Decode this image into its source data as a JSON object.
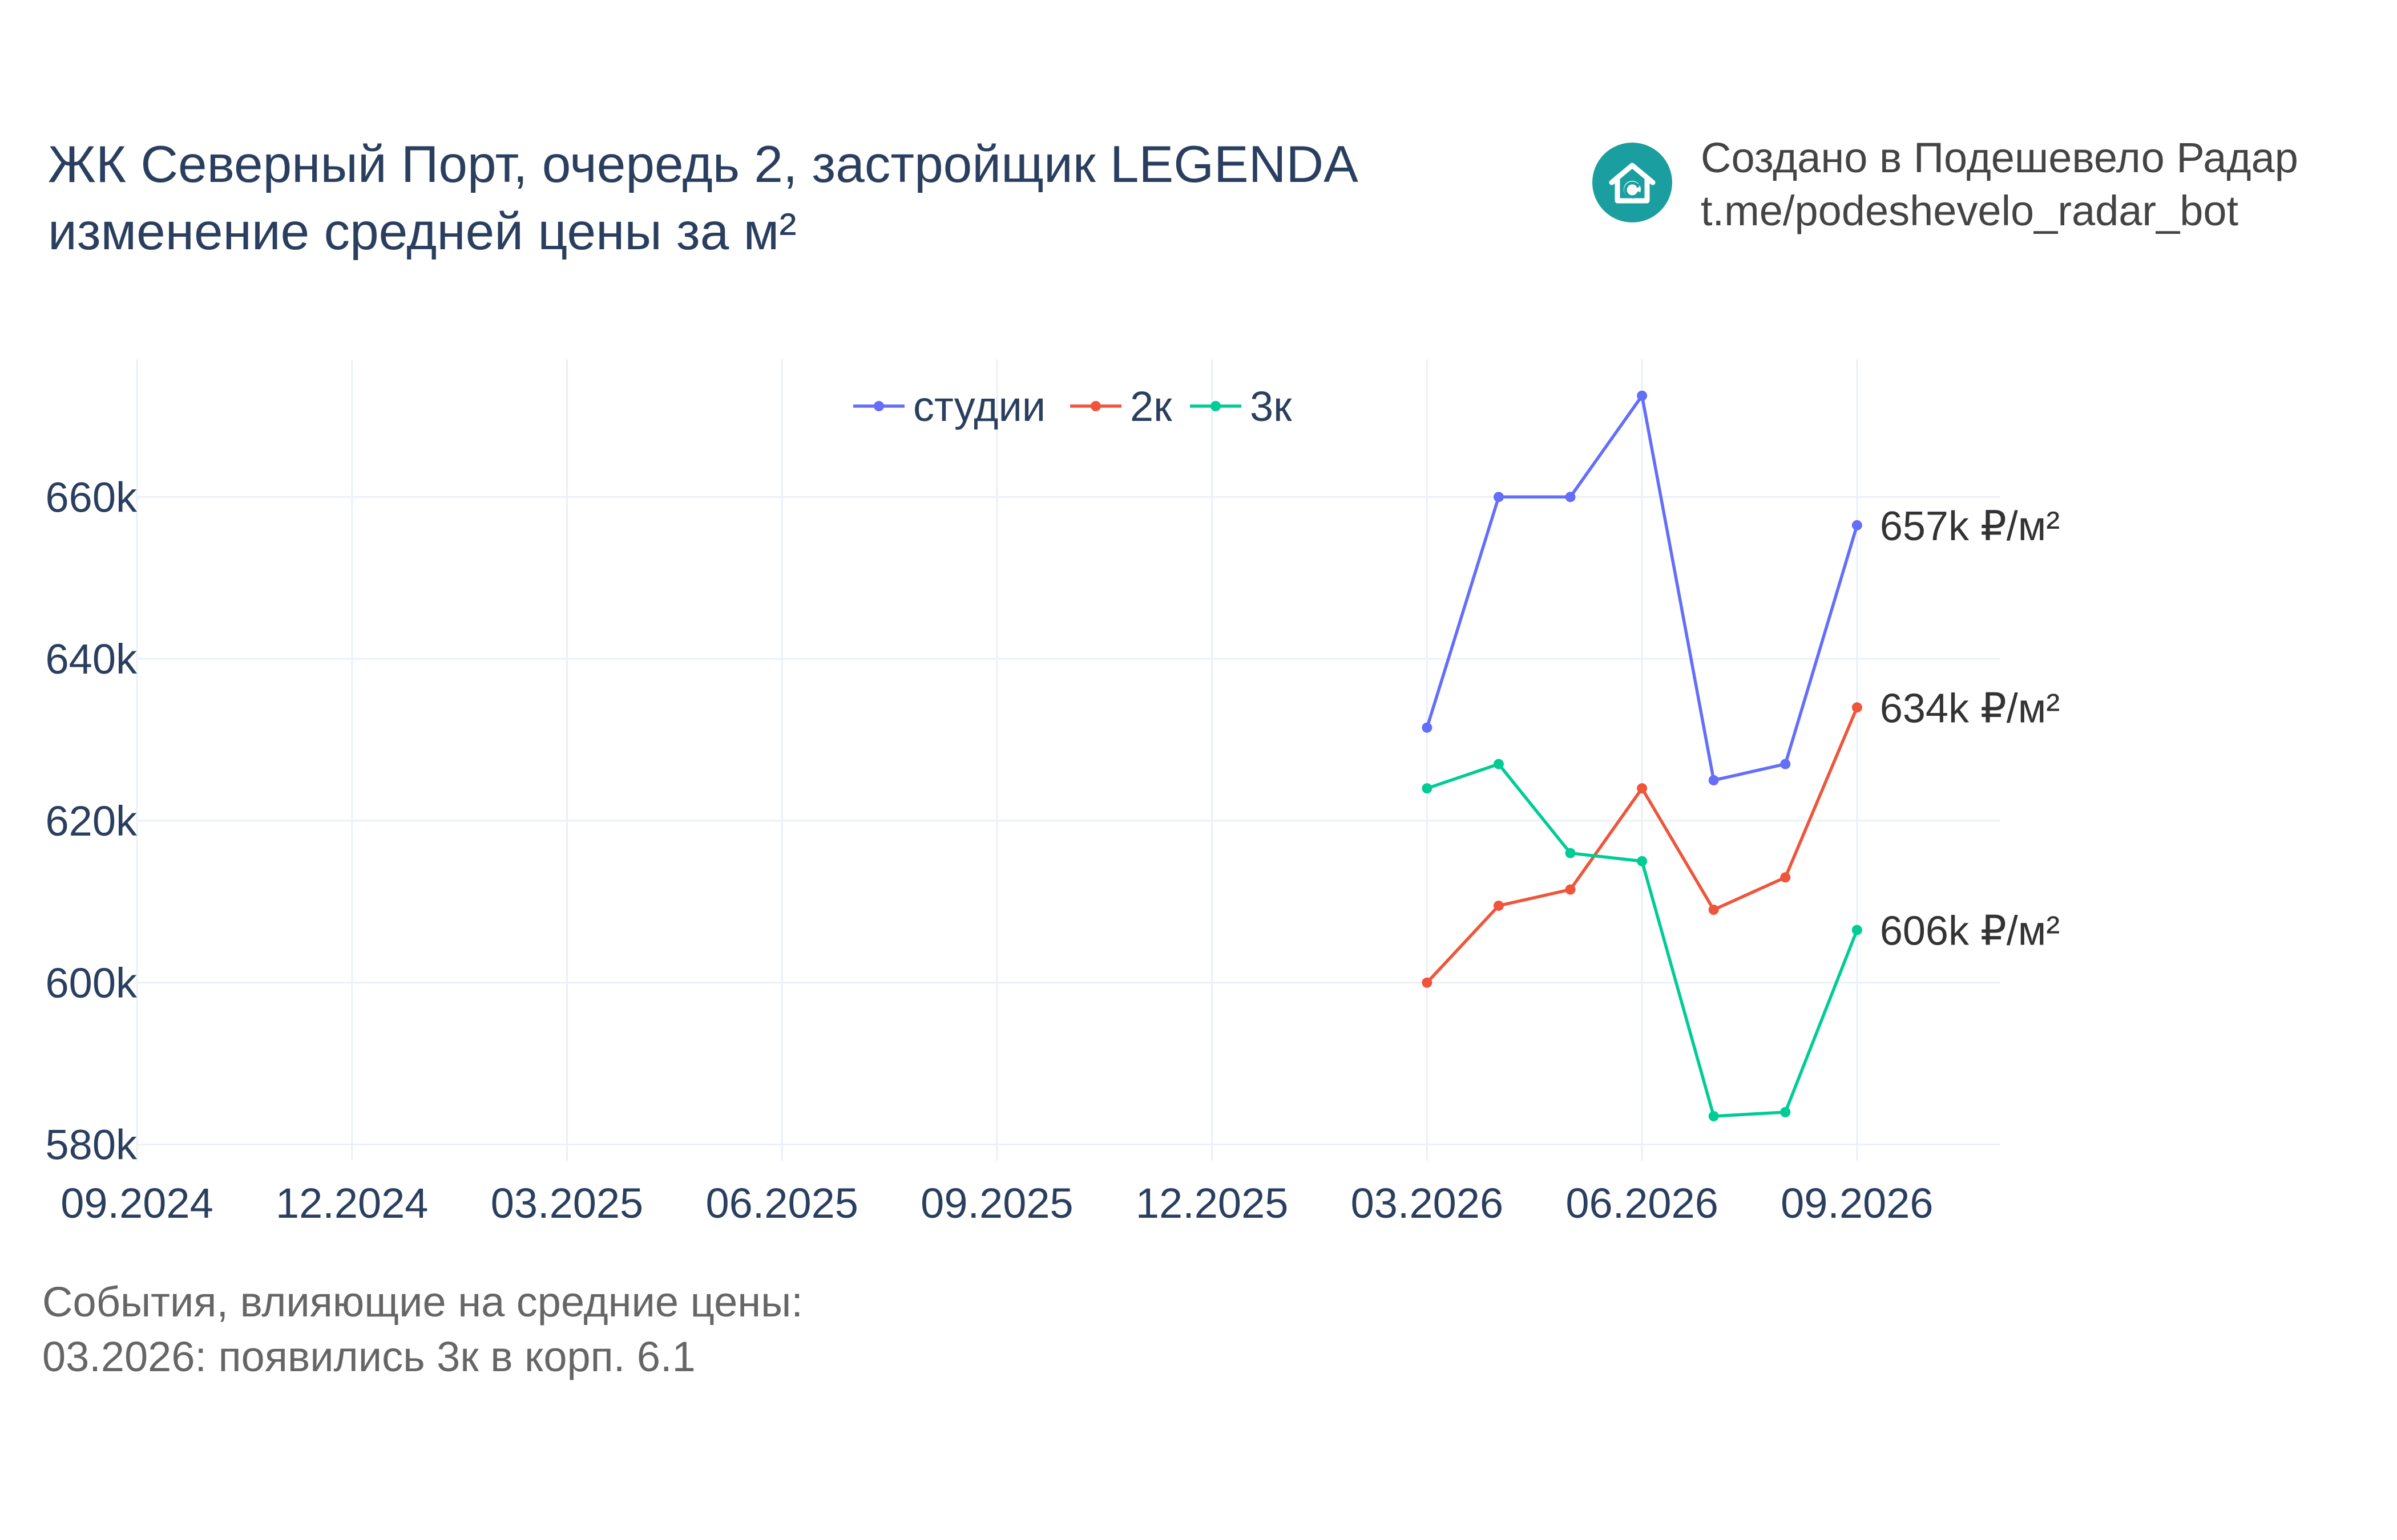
{
  "header": {
    "title_line1": "ЖК Северный Порт, очередь 2, застройщик LEGENDA",
    "title_line2": "изменение средней цены за м²"
  },
  "brand": {
    "line1": "Создано в Подешевело Радар",
    "line2": "t.me/podeshevelo_radar_bot",
    "logo_icon": "house-refresh-icon",
    "logo_color": "#1a9e9f"
  },
  "events": {
    "heading": "События, влияющие на средние цены:",
    "items": [
      "03.2026: появились 3к в корп. 6.1"
    ]
  },
  "chart_data": {
    "type": "line",
    "x_ticks": [
      "09.2024",
      "12.2024",
      "03.2025",
      "06.2025",
      "09.2025",
      "12.2025",
      "03.2026",
      "06.2026",
      "09.2026"
    ],
    "x_range": [
      "09.2024",
      "11.2026"
    ],
    "y_ticks": [
      580000,
      600000,
      620000,
      640000,
      660000
    ],
    "y_tick_labels": [
      "580k",
      "600k",
      "620k",
      "640k",
      "660k"
    ],
    "ylim": [
      578000,
      677000
    ],
    "grid": true,
    "legend_position": "top-center",
    "x": [
      "03.2026",
      "04.2026",
      "05.2026",
      "06.2026",
      "07.2026",
      "08.2026",
      "09.2026"
    ],
    "series": [
      {
        "name": "студии",
        "color": "#636efa",
        "values": [
          631500,
          660000,
          660000,
          672500,
          625000,
          627000,
          656500
        ],
        "end_label": "657k ₽/м²"
      },
      {
        "name": "2к",
        "color": "#ef553b",
        "values": [
          600000,
          609500,
          611500,
          624000,
          609000,
          613000,
          634000
        ],
        "end_label": "634k ₽/м²"
      },
      {
        "name": "3к",
        "color": "#00cc96",
        "values": [
          624000,
          627000,
          616000,
          615000,
          583500,
          584000,
          606500
        ],
        "end_label": "606k ₽/м²"
      }
    ]
  }
}
